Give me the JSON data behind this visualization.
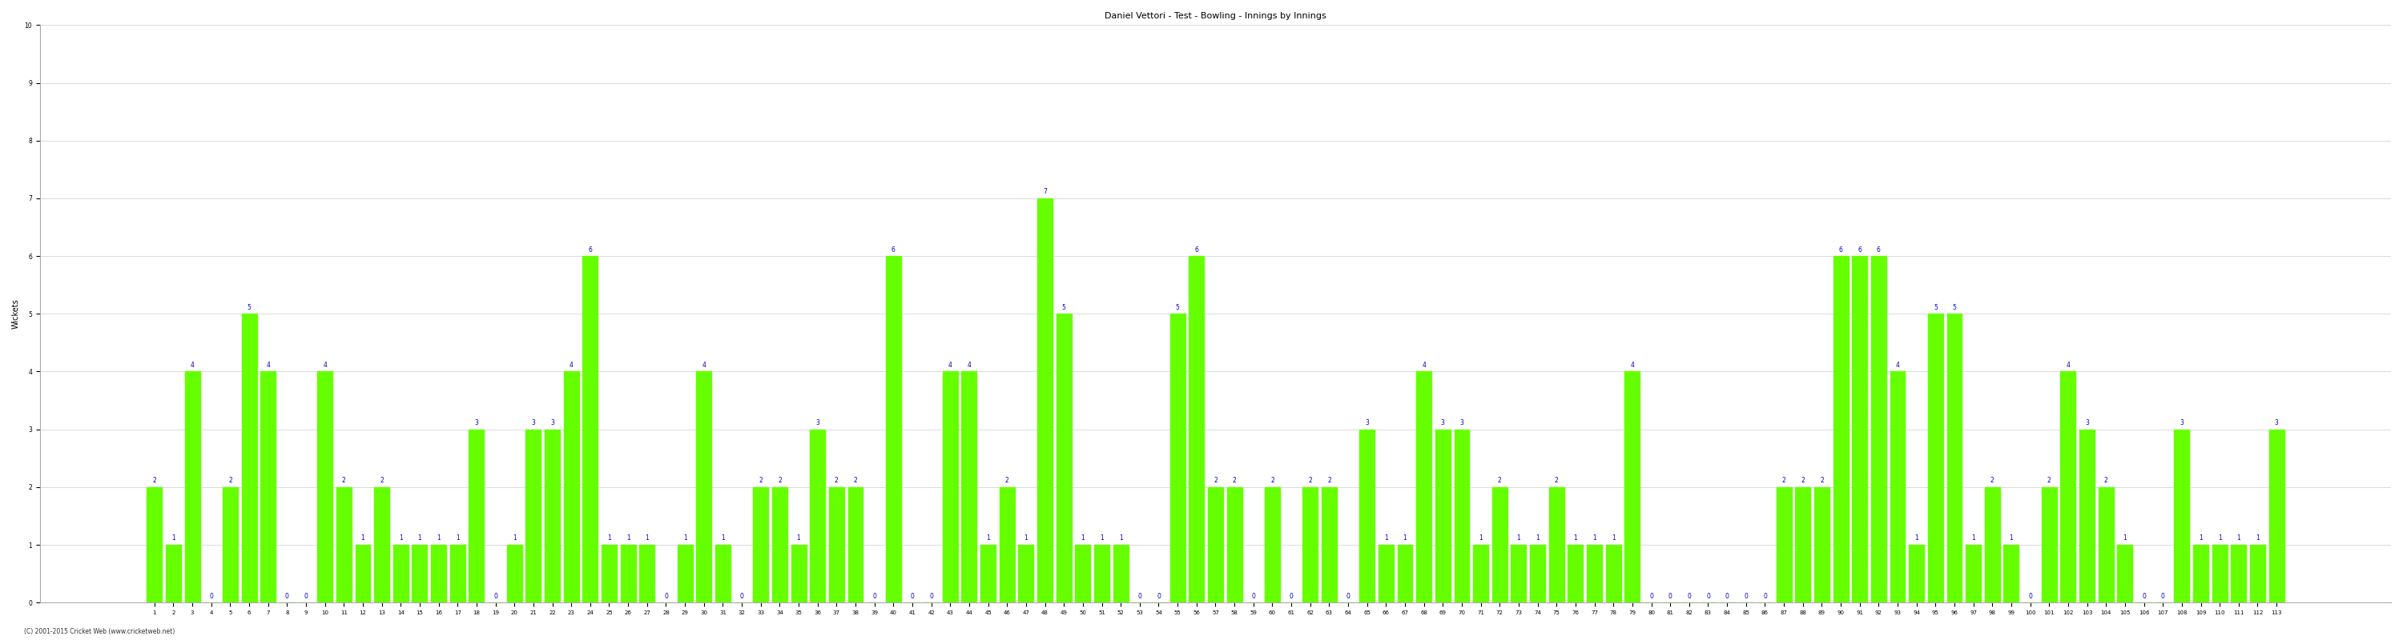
{
  "title": "Daniel Vettori - Test - Bowling - Innings by Innings",
  "ylabel": "Wickets",
  "bar_color": "#66ff00",
  "bar_edge_color": "#66ff00",
  "label_color": "#0000cc",
  "background_color": "#ffffff",
  "grid_color": "#cccccc",
  "ylim": [
    0,
    10
  ],
  "yticks": [
    0,
    1,
    2,
    3,
    4,
    5,
    6,
    7,
    8,
    9,
    10
  ],
  "title_fontsize": 8,
  "label_fontsize": 5.5,
  "axis_label_fontsize": 7,
  "tick_fontsize": 5,
  "copyright": "(C) 2001-2015 Cricket Web (www.cricketweb.net)",
  "innings": [
    1,
    2,
    3,
    4,
    5,
    6,
    7,
    8,
    9,
    10,
    11,
    12,
    13,
    14,
    15,
    16,
    17,
    18,
    19,
    20,
    21,
    22,
    23,
    24,
    25,
    26,
    27,
    28,
    29,
    30,
    31,
    32,
    33,
    34,
    35,
    36,
    37,
    38,
    39,
    40,
    41,
    42,
    43,
    44,
    45,
    46,
    47,
    48,
    49,
    50,
    51,
    52,
    53,
    54,
    55,
    56,
    57,
    58,
    59,
    60,
    61,
    62,
    63,
    64,
    65,
    66,
    67,
    68,
    69,
    70,
    71,
    72,
    73,
    74,
    75,
    76,
    77,
    78,
    79,
    80,
    81,
    82,
    83,
    84,
    85,
    86,
    87,
    88,
    89,
    90,
    91,
    92,
    93,
    94,
    95,
    96,
    97,
    98,
    99,
    100,
    101,
    102,
    103,
    104,
    105,
    106,
    107,
    108,
    109,
    110,
    111,
    112,
    113
  ],
  "wickets": [
    2,
    1,
    4,
    0,
    2,
    5,
    4,
    0,
    0,
    4,
    2,
    1,
    2,
    1,
    1,
    1,
    1,
    3,
    0,
    1,
    3,
    3,
    4,
    6,
    1,
    1,
    1,
    0,
    1,
    4,
    1,
    0,
    2,
    2,
    1,
    3,
    2,
    2,
    0,
    6,
    0,
    0,
    4,
    4,
    1,
    2,
    1,
    7,
    5,
    1,
    1,
    1,
    0,
    0,
    5,
    6,
    2,
    2,
    0,
    2,
    0,
    2,
    2,
    0,
    3,
    1,
    1,
    4,
    3,
    3,
    1,
    2,
    1,
    1,
    2,
    1,
    1,
    1,
    4,
    0,
    0,
    0,
    0,
    0,
    0,
    0,
    2,
    2,
    2,
    6,
    6,
    6,
    4,
    1,
    5,
    5,
    1,
    2,
    1,
    0,
    2,
    4,
    3,
    2,
    1,
    0,
    0,
    3,
    1,
    1,
    1,
    1,
    3
  ]
}
